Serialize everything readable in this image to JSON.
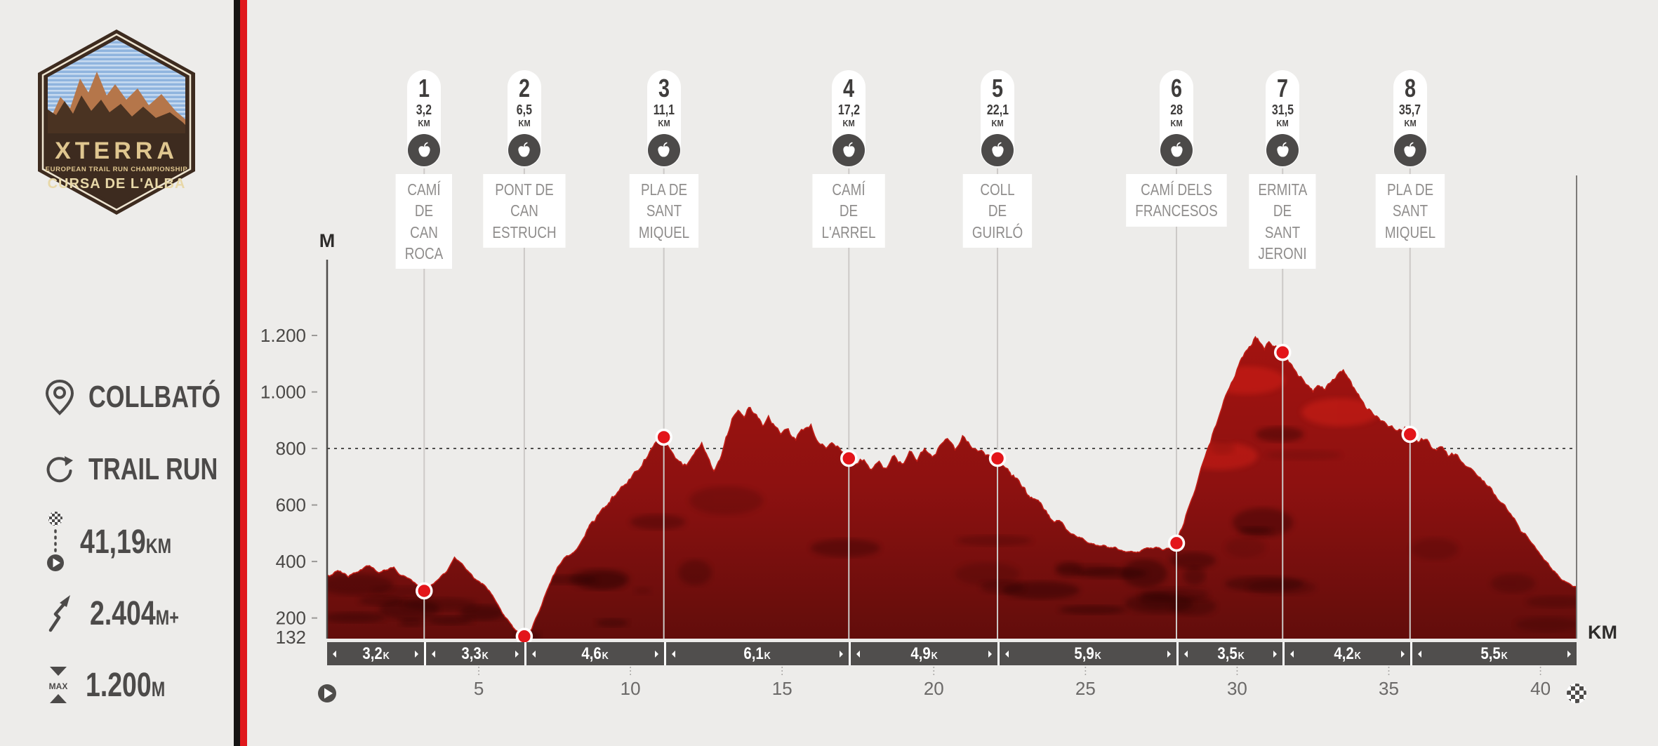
{
  "page": {
    "background": "#edecea",
    "stripe_black": "#161413",
    "stripe_red": "#e0181c"
  },
  "logo": {
    "brand": "XTERRA",
    "subtitle": "EUROPEAN TRAIL RUN CHAMPIONSHIP",
    "event": "CURSA DE L'ALBA"
  },
  "sidebar": {
    "location": {
      "icon": "location-pin-icon",
      "label": "COLLBATÓ"
    },
    "discipline": {
      "icon": "loop-arrow-icon",
      "label": "TRAIL RUN"
    },
    "distance": {
      "icon": "route-start-finish-icon",
      "value": "41,19",
      "unit": "KM"
    },
    "elevation_gain": {
      "icon": "ascent-arrow-icon",
      "value": "2.404",
      "unit": "M+"
    },
    "max_elevation": {
      "icon": "max-elevation-icon",
      "value": "1.200",
      "unit": "M",
      "icon_text": "MAX"
    }
  },
  "chart": {
    "y_axis_label": "M",
    "x_axis_label": "KM",
    "checkpoint_icon": "apple-aid-station-icon",
    "start_icon": "play-icon",
    "finish_icon": "checkered-flag-icon"
  },
  "chart_data": {
    "type": "area",
    "title": "Cursa de l'Alba elevation profile",
    "xlabel": "KM",
    "ylabel": "M",
    "xlim": [
      0,
      41.19
    ],
    "ylim": [
      132,
      1200
    ],
    "x_ticks": [
      5,
      10,
      15,
      20,
      25,
      30,
      35,
      40
    ],
    "y_ticks": [
      200,
      400,
      600,
      800,
      1000,
      1200
    ],
    "y_tick_labels": [
      "200",
      "400",
      "600",
      "800",
      "1.000",
      "1.200"
    ],
    "y_min_label": "132",
    "dotted_gridline_y": 800,
    "colors": {
      "terrain_top": "#a31310",
      "terrain_mid": "#8d1110",
      "terrain_bottom": "#620d0b",
      "terrain_edge": "#bf1d16",
      "dot": "#e3151a",
      "guide_line": "#ccc9c7",
      "axis": "#4e4c4a",
      "segment_bar": "#504e4d"
    },
    "checkpoints": [
      {
        "n": "1",
        "km": 3.2,
        "km_label": "3,2",
        "unit": "KM",
        "elev": 296,
        "name": [
          "CAMÍ DE",
          "CAN ROCA"
        ]
      },
      {
        "n": "2",
        "km": 6.5,
        "km_label": "6,5",
        "unit": "KM",
        "elev": 135,
        "name": [
          "PONT DE",
          "CAN ESTRUCH"
        ]
      },
      {
        "n": "3",
        "km": 11.1,
        "km_label": "11,1",
        "unit": "KM",
        "elev": 840,
        "name": [
          "PLA DE",
          "SANT MIQUEL"
        ]
      },
      {
        "n": "4",
        "km": 17.2,
        "km_label": "17,2",
        "unit": "KM",
        "elev": 765,
        "name": [
          "CAMÍ DE L'ARREL"
        ]
      },
      {
        "n": "5",
        "km": 22.1,
        "km_label": "22,1",
        "unit": "KM",
        "elev": 765,
        "name": [
          "COLL DE GUIRLÓ"
        ]
      },
      {
        "n": "6",
        "km": 28,
        "km_label": "28",
        "unit": "KM",
        "elev": 465,
        "name": [
          "CAMÍ DELS",
          "FRANCESOS"
        ]
      },
      {
        "n": "7",
        "km": 31.5,
        "km_label": "31,5",
        "unit": "KM",
        "elev": 1140,
        "name": [
          "ERMITA DE",
          "SANT JERONI"
        ]
      },
      {
        "n": "8",
        "km": 35.7,
        "km_label": "35,7",
        "unit": "KM",
        "elev": 850,
        "name": [
          "PLA DE",
          "SANT MIQUEL"
        ]
      }
    ],
    "segments": [
      {
        "label": "3,2",
        "unit": "K",
        "from": 0,
        "to": 3.2
      },
      {
        "label": "3,3",
        "unit": "K",
        "from": 3.2,
        "to": 6.5
      },
      {
        "label": "4,6",
        "unit": "K",
        "from": 6.5,
        "to": 11.1
      },
      {
        "label": "6,1",
        "unit": "K",
        "from": 11.1,
        "to": 17.2
      },
      {
        "label": "4,9",
        "unit": "K",
        "from": 17.2,
        "to": 22.1
      },
      {
        "label": "5,9",
        "unit": "K",
        "from": 22.1,
        "to": 28
      },
      {
        "label": "3,5",
        "unit": "K",
        "from": 28,
        "to": 31.5
      },
      {
        "label": "4,2",
        "unit": "K",
        "from": 31.5,
        "to": 35.7
      },
      {
        "label": "5,5",
        "unit": "K",
        "from": 35.7,
        "to": 41.19
      }
    ],
    "profile": [
      [
        0,
        350
      ],
      [
        0.35,
        368
      ],
      [
        0.7,
        345
      ],
      [
        1.0,
        362
      ],
      [
        1.4,
        385
      ],
      [
        1.7,
        360
      ],
      [
        2.0,
        370
      ],
      [
        2.2,
        380
      ],
      [
        2.45,
        350
      ],
      [
        2.7,
        340
      ],
      [
        2.95,
        318
      ],
      [
        3.2,
        296
      ],
      [
        3.45,
        318
      ],
      [
        3.7,
        340
      ],
      [
        3.95,
        365
      ],
      [
        4.2,
        415
      ],
      [
        4.45,
        392
      ],
      [
        4.7,
        360
      ],
      [
        5.0,
        330
      ],
      [
        5.3,
        300
      ],
      [
        5.6,
        252
      ],
      [
        5.9,
        200
      ],
      [
        6.2,
        158
      ],
      [
        6.5,
        135
      ],
      [
        6.75,
        162
      ],
      [
        7.0,
        225
      ],
      [
        7.3,
        310
      ],
      [
        7.6,
        380
      ],
      [
        7.9,
        420
      ],
      [
        8.2,
        440
      ],
      [
        8.5,
        490
      ],
      [
        8.8,
        540
      ],
      [
        9.1,
        590
      ],
      [
        9.4,
        630
      ],
      [
        9.7,
        665
      ],
      [
        9.95,
        690
      ],
      [
        10.2,
        720
      ],
      [
        10.45,
        760
      ],
      [
        10.7,
        800
      ],
      [
        10.9,
        825
      ],
      [
        11.1,
        840
      ],
      [
        11.35,
        790
      ],
      [
        11.6,
        755
      ],
      [
        11.85,
        740
      ],
      [
        12.1,
        780
      ],
      [
        12.35,
        820
      ],
      [
        12.55,
        770
      ],
      [
        12.75,
        720
      ],
      [
        12.95,
        760
      ],
      [
        13.15,
        840
      ],
      [
        13.35,
        905
      ],
      [
        13.55,
        935
      ],
      [
        13.75,
        910
      ],
      [
        13.95,
        945
      ],
      [
        14.15,
        920
      ],
      [
        14.35,
        880
      ],
      [
        14.55,
        915
      ],
      [
        14.75,
        880
      ],
      [
        14.95,
        850
      ],
      [
        15.2,
        870
      ],
      [
        15.45,
        830
      ],
      [
        15.7,
        865
      ],
      [
        15.95,
        885
      ],
      [
        16.2,
        820
      ],
      [
        16.45,
        800
      ],
      [
        16.7,
        815
      ],
      [
        16.95,
        790
      ],
      [
        17.2,
        765
      ],
      [
        17.45,
        745
      ],
      [
        17.7,
        760
      ],
      [
        17.95,
        725
      ],
      [
        18.2,
        755
      ],
      [
        18.45,
        730
      ],
      [
        18.7,
        775
      ],
      [
        18.95,
        745
      ],
      [
        19.2,
        790
      ],
      [
        19.45,
        755
      ],
      [
        19.7,
        800
      ],
      [
        19.95,
        770
      ],
      [
        20.2,
        810
      ],
      [
        20.45,
        835
      ],
      [
        20.7,
        795
      ],
      [
        20.95,
        845
      ],
      [
        21.2,
        810
      ],
      [
        21.45,
        790
      ],
      [
        21.7,
        775
      ],
      [
        22.1,
        765
      ],
      [
        22.4,
        730
      ],
      [
        22.7,
        695
      ],
      [
        23.0,
        660
      ],
      [
        23.35,
        620
      ],
      [
        23.7,
        580
      ],
      [
        24.05,
        545
      ],
      [
        24.4,
        510
      ],
      [
        24.75,
        485
      ],
      [
        25.1,
        465
      ],
      [
        25.45,
        455
      ],
      [
        25.8,
        448
      ],
      [
        26.15,
        440
      ],
      [
        26.5,
        436
      ],
      [
        26.85,
        440
      ],
      [
        27.2,
        446
      ],
      [
        27.55,
        440
      ],
      [
        27.8,
        448
      ],
      [
        28.0,
        465
      ],
      [
        28.25,
        535
      ],
      [
        28.5,
        620
      ],
      [
        28.75,
        705
      ],
      [
        29.0,
        790
      ],
      [
        29.25,
        870
      ],
      [
        29.5,
        945
      ],
      [
        29.75,
        1015
      ],
      [
        30.0,
        1080
      ],
      [
        30.2,
        1125
      ],
      [
        30.4,
        1160
      ],
      [
        30.6,
        1195
      ],
      [
        30.75,
        1175
      ],
      [
        30.9,
        1150
      ],
      [
        31.05,
        1178
      ],
      [
        31.2,
        1162
      ],
      [
        31.5,
        1140
      ],
      [
        31.7,
        1105
      ],
      [
        31.9,
        1078
      ],
      [
        32.1,
        1055
      ],
      [
        32.3,
        1025
      ],
      [
        32.5,
        1000
      ],
      [
        32.7,
        1022
      ],
      [
        32.9,
        1008
      ],
      [
        33.1,
        1035
      ],
      [
        33.3,
        1060
      ],
      [
        33.5,
        1078
      ],
      [
        33.7,
        1045
      ],
      [
        33.9,
        1005
      ],
      [
        34.1,
        972
      ],
      [
        34.35,
        940
      ],
      [
        34.6,
        915
      ],
      [
        34.85,
        895
      ],
      [
        35.1,
        880
      ],
      [
        35.35,
        868
      ],
      [
        35.7,
        850
      ],
      [
        35.95,
        822
      ],
      [
        36.2,
        832
      ],
      [
        36.45,
        798
      ],
      [
        36.7,
        806
      ],
      [
        36.95,
        772
      ],
      [
        37.2,
        780
      ],
      [
        37.45,
        748
      ],
      [
        37.7,
        730
      ],
      [
        37.95,
        700
      ],
      [
        38.2,
        672
      ],
      [
        38.45,
        640
      ],
      [
        38.7,
        608
      ],
      [
        38.95,
        575
      ],
      [
        39.2,
        540
      ],
      [
        39.5,
        498
      ],
      [
        39.8,
        455
      ],
      [
        40.1,
        408
      ],
      [
        40.4,
        368
      ],
      [
        40.7,
        335
      ],
      [
        41.0,
        318
      ],
      [
        41.19,
        310
      ]
    ]
  }
}
